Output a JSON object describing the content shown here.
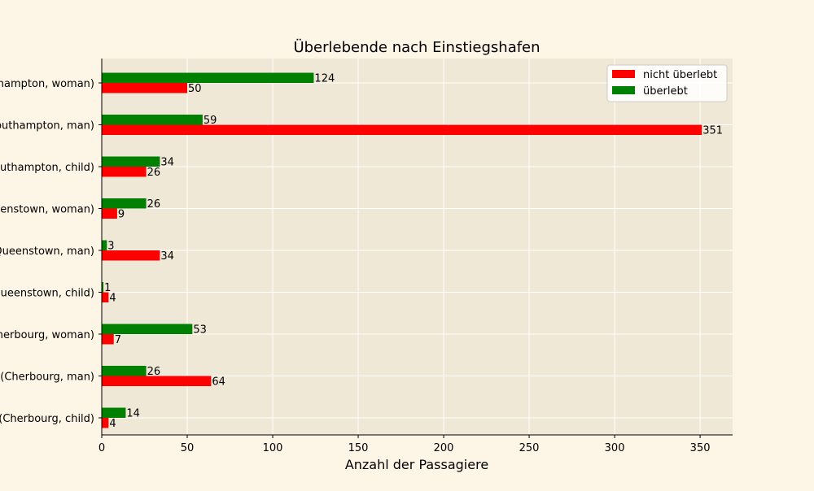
{
  "chart_data": {
    "type": "bar",
    "orientation": "horizontal",
    "title": "Überlebende nach Einstiegshafen",
    "xlabel": "Anzahl der Passagiere",
    "ylabel": "",
    "xlim": [
      0,
      369
    ],
    "xticks": [
      0,
      50,
      100,
      150,
      200,
      250,
      300,
      350
    ],
    "grid": true,
    "legend_position": "top-right",
    "categories": [
      "(Cherbourg, child)",
      "(Cherbourg, man)",
      "(Cherbourg, woman)",
      "(Queenstown, child)",
      "(Queenstown, man)",
      "(Queenstown, woman)",
      "(Southampton, child)",
      "(Southampton, man)",
      "(Southampton, woman)"
    ],
    "series": [
      {
        "name": "nicht überlebt",
        "color": "#ff0000",
        "values": [
          4,
          64,
          7,
          4,
          34,
          9,
          26,
          351,
          50
        ]
      },
      {
        "name": "überlebt",
        "color": "#008000",
        "values": [
          14,
          26,
          53,
          1,
          3,
          26,
          34,
          59,
          124
        ]
      }
    ],
    "colors": {
      "plot_background": "#efe8d6",
      "figure_background": "#fdf5e6",
      "grid": "#ffffff"
    }
  }
}
